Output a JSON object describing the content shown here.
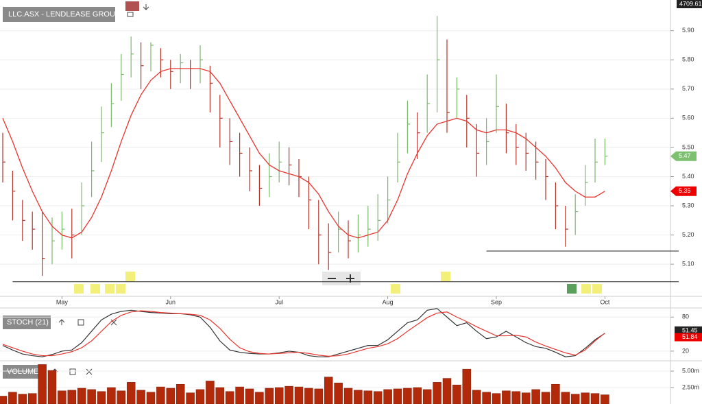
{
  "chart_data": [
    {
      "type": "ohlc",
      "title": "LLC.ASX - LENDLEASE GROUP",
      "top_value": "4709.61",
      "categories": [
        null,
        null,
        null,
        null,
        null,
        null,
        "May",
        null,
        null,
        null,
        null,
        null,
        null,
        null,
        null,
        null,
        null,
        "Jun",
        null,
        null,
        null,
        null,
        null,
        null,
        null,
        null,
        null,
        null,
        "Jul",
        null,
        null,
        null,
        null,
        null,
        null,
        null,
        null,
        null,
        null,
        "Aug",
        null,
        null,
        null,
        null,
        null,
        null,
        null,
        null,
        null,
        null,
        "Sep",
        null,
        null,
        null,
        null,
        null,
        null,
        null,
        null,
        null,
        null,
        "Oct"
      ],
      "high": [
        5.55,
        5.42,
        5.32,
        5.28,
        5.28,
        5.26,
        5.28,
        5.29,
        5.38,
        5.52,
        5.64,
        5.72,
        5.82,
        5.88,
        5.86,
        5.86,
        5.84,
        5.8,
        5.82,
        5.8,
        5.85,
        5.78,
        5.68,
        5.6,
        5.55,
        5.5,
        5.44,
        5.48,
        5.52,
        5.5,
        5.46,
        5.4,
        5.32,
        5.24,
        5.28,
        5.25,
        5.27,
        5.3,
        5.34,
        5.4,
        5.55,
        5.66,
        5.62,
        5.75,
        5.95,
        5.87,
        5.74,
        5.68,
        5.58,
        5.6,
        5.75,
        5.65,
        5.58,
        5.55,
        5.52,
        5.46,
        5.38,
        5.3,
        5.34,
        5.44,
        5.53,
        5.53
      ],
      "low": [
        5.38,
        5.25,
        5.18,
        5.15,
        5.06,
        5.1,
        5.15,
        5.12,
        5.2,
        5.33,
        5.45,
        5.57,
        5.66,
        5.74,
        5.7,
        5.76,
        5.74,
        5.7,
        5.72,
        5.7,
        5.72,
        5.62,
        5.5,
        5.44,
        5.4,
        5.35,
        5.3,
        5.33,
        5.38,
        5.37,
        5.33,
        5.22,
        5.1,
        5.08,
        5.14,
        5.12,
        5.14,
        5.16,
        5.18,
        5.24,
        5.38,
        5.48,
        5.46,
        5.55,
        5.62,
        5.55,
        5.6,
        5.5,
        5.4,
        5.44,
        5.55,
        5.48,
        5.44,
        5.42,
        5.39,
        5.32,
        5.22,
        5.16,
        5.2,
        5.3,
        5.38,
        5.44
      ],
      "close": [
        5.45,
        5.35,
        5.25,
        5.22,
        5.12,
        5.18,
        5.22,
        5.2,
        5.3,
        5.42,
        5.55,
        5.65,
        5.75,
        5.82,
        5.78,
        5.85,
        5.8,
        5.76,
        5.79,
        5.77,
        5.8,
        5.72,
        5.6,
        5.52,
        5.48,
        5.42,
        5.36,
        5.4,
        5.45,
        5.44,
        5.4,
        5.32,
        5.2,
        5.14,
        5.22,
        5.18,
        5.2,
        5.22,
        5.25,
        5.32,
        5.45,
        5.58,
        5.55,
        5.65,
        5.8,
        5.62,
        5.7,
        5.6,
        5.48,
        5.52,
        5.64,
        5.55,
        5.5,
        5.48,
        5.45,
        5.4,
        5.3,
        5.22,
        5.28,
        5.38,
        5.45,
        5.47
      ],
      "ma": {
        "color": "#e8342c",
        "values": [
          5.6,
          5.52,
          5.43,
          5.35,
          5.28,
          5.23,
          5.2,
          5.19,
          5.21,
          5.26,
          5.33,
          5.42,
          5.52,
          5.61,
          5.68,
          5.73,
          5.76,
          5.77,
          5.77,
          5.77,
          5.77,
          5.76,
          5.72,
          5.66,
          5.6,
          5.54,
          5.48,
          5.44,
          5.42,
          5.41,
          5.4,
          5.38,
          5.34,
          5.28,
          5.23,
          5.2,
          5.19,
          5.2,
          5.21,
          5.25,
          5.32,
          5.41,
          5.48,
          5.54,
          5.58,
          5.59,
          5.6,
          5.59,
          5.56,
          5.55,
          5.56,
          5.56,
          5.55,
          5.53,
          5.5,
          5.47,
          5.43,
          5.38,
          5.35,
          5.33,
          5.33,
          5.35
        ]
      },
      "up_color": "#7cb86a",
      "down_color": "#b8322a",
      "hlines": [
        {
          "value": 5.145,
          "from": 49
        },
        {
          "value": 5.04,
          "from": 1
        }
      ],
      "ylim": [
        4.99,
        6.005
      ],
      "yticks": [
        {
          "value": 5.1,
          "label": "5.10"
        },
        {
          "value": 5.2,
          "label": "5.20"
        },
        {
          "value": 5.3,
          "label": "5.30"
        },
        {
          "value": 5.4,
          "label": "5.40"
        },
        {
          "value": 5.5,
          "label": "5.50"
        },
        {
          "value": 5.6,
          "label": "5.60"
        },
        {
          "value": 5.7,
          "label": "5.70"
        },
        {
          "value": 5.8,
          "label": "5.80"
        },
        {
          "value": 5.9,
          "label": "5.90"
        }
      ]
    },
    {
      "type": "line",
      "title": "STOCH (21)",
      "series": [
        {
          "color": "#333333",
          "values": [
            30,
            22,
            15,
            12,
            10,
            14,
            20,
            22,
            35,
            55,
            75,
            85,
            90,
            92,
            90,
            88,
            87,
            86,
            86,
            84,
            80,
            62,
            38,
            22,
            18,
            16,
            15,
            15,
            17,
            20,
            18,
            12,
            10,
            10,
            15,
            20,
            25,
            30,
            30,
            40,
            55,
            70,
            75,
            92,
            95,
            80,
            65,
            70,
            55,
            42,
            45,
            55,
            45,
            35,
            28,
            25,
            18,
            10,
            12,
            25,
            40,
            51.45
          ]
        },
        {
          "color": "#e8342c",
          "values": [
            32,
            26,
            20,
            15,
            12,
            12,
            15,
            19,
            26,
            38,
            55,
            72,
            83,
            89,
            91,
            90,
            88,
            87,
            86,
            85,
            83,
            75,
            60,
            41,
            26,
            19,
            16,
            15,
            16,
            17,
            18,
            16,
            13,
            11,
            12,
            15,
            20,
            25,
            28,
            33,
            42,
            55,
            67,
            79,
            87,
            89,
            80,
            72,
            63,
            55,
            47,
            47,
            48,
            45,
            36,
            29,
            23,
            17,
            13,
            22,
            38,
            51.84
          ]
        }
      ],
      "ylim": [
        3,
        96
      ],
      "yticks": [
        20,
        80
      ]
    },
    {
      "type": "bar",
      "title": "VOLUME",
      "color": "#b22a0a",
      "values": [
        1.2,
        1.8,
        1.5,
        1.6,
        6.0,
        5.1,
        2.0,
        2.1,
        2.4,
        2.2,
        1.9,
        2.5,
        2.0,
        3.3,
        2.1,
        1.8,
        2.6,
        2.4,
        3.0,
        1.7,
        2.2,
        3.5,
        2.5,
        1.9,
        2.6,
        2.3,
        1.8,
        2.4,
        2.5,
        2.7,
        2.6,
        2.4,
        2.3,
        4.1,
        3.2,
        2.4,
        2.1,
        2.0,
        1.9,
        2.2,
        2.3,
        2.4,
        2.5,
        2.2,
        3.3,
        3.9,
        2.9,
        5.3,
        2.1,
        1.8,
        1.6,
        2.0,
        1.9,
        1.7,
        2.2,
        1.8,
        3.0,
        1.8,
        1.5,
        1.7,
        1.6,
        1.4
      ],
      "ylim": [
        0,
        6.15
      ],
      "yticks": [
        {
          "value": 2.5,
          "label": "2.50m"
        },
        {
          "value": 5,
          "label": "5.00m"
        }
      ]
    }
  ]
}
